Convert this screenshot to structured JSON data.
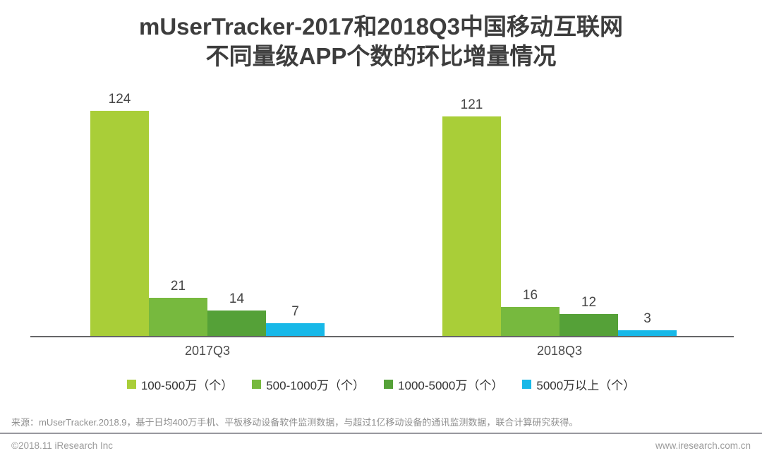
{
  "header": {
    "title_lines": [
      "mUserTracker-2017和2018Q3中国移动互联网",
      "不同量级APP个数的环比增量情况"
    ]
  },
  "chart_data": {
    "type": "bar",
    "grouped": true,
    "title": "mUserTracker-2017和2018Q3中国移动互联网不同量级APP个数的环比增量情况",
    "categories": [
      "2017Q3",
      "2018Q3"
    ],
    "series": [
      {
        "name": "100-500万（个）",
        "color": "#a9ce38",
        "values": [
          124,
          121
        ]
      },
      {
        "name": "500-1000万（个）",
        "color": "#77b93e",
        "values": [
          21,
          16
        ]
      },
      {
        "name": "1000-5000万（个）",
        "color": "#55a138",
        "values": [
          14,
          12
        ]
      },
      {
        "name": "5000万以上（个）",
        "color": "#17b8e8",
        "values": [
          7,
          3
        ]
      }
    ],
    "value_labels": true,
    "legend_position": "bottom",
    "grid": false,
    "ylim": [
      0,
      135
    ],
    "axis_color": "#666668"
  },
  "source": {
    "text": "来源：mUserTracker.2018.9，基于日均400万手机、平板移动设备软件监测数据，与超过1亿移动设备的通讯监测数据，联合计算研究获得。"
  },
  "footer": {
    "copyright": "©2018.11 iResearch Inc",
    "website": "www.iresearch.com.cn"
  }
}
